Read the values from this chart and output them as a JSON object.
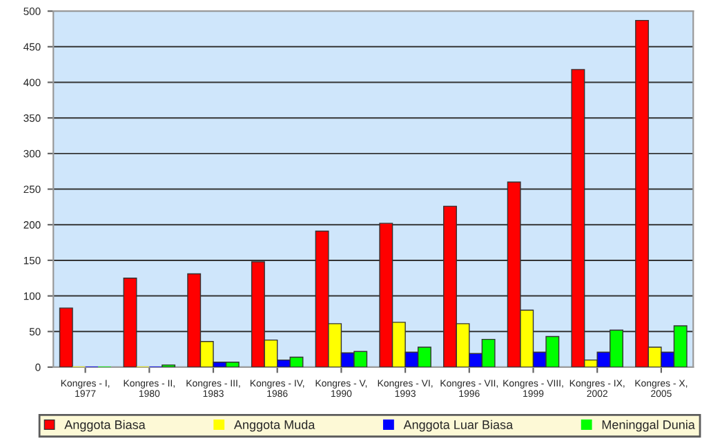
{
  "chart_data": {
    "type": "bar",
    "categories": [
      "Kongres - I,\n1977",
      "Kongres - II,\n1980",
      "Kongres - III,\n1983",
      "Kongres - IV,\n1986",
      "Kongres - V,\n1990",
      "Kongres - VI,\n1993",
      "Kongres - VII,\n1996",
      "Kongres - VIII,\n1999",
      "Kongres - IX,\n2002",
      "Kongres - X,\n2005"
    ],
    "series": [
      {
        "name": "Anggota Biasa",
        "color": "#ff0000",
        "values": [
          83,
          125,
          131,
          148,
          191,
          202,
          226,
          260,
          418,
          487
        ]
      },
      {
        "name": "Anggota Muda",
        "color": "#ffff00",
        "values": [
          0,
          0,
          36,
          38,
          61,
          63,
          61,
          80,
          10,
          28
        ]
      },
      {
        "name": "Anggota Luar Biasa",
        "color": "#0000ff",
        "values": [
          0,
          0,
          7,
          10,
          20,
          21,
          19,
          21,
          21,
          21
        ]
      },
      {
        "name": "Meninggal Dunia",
        "color": "#00ff00",
        "values": [
          0,
          3,
          7,
          14,
          22,
          28,
          39,
          43,
          52,
          58
        ]
      }
    ],
    "ylim": [
      0,
      500
    ],
    "yticks": [
      0,
      50,
      100,
      150,
      200,
      250,
      300,
      350,
      400,
      450,
      500
    ],
    "grid": "y",
    "legend": "bottom"
  }
}
